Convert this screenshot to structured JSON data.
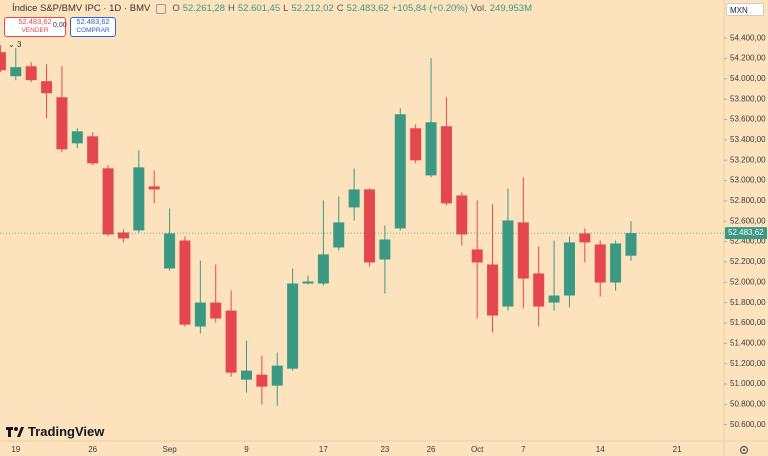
{
  "header": {
    "title": "Índice S&P/BMV IPC · 1D · BMV",
    "o_key": "O",
    "o": "52.261,28",
    "h_key": "H",
    "h": "52.601,45",
    "l_key": "L",
    "l": "52.212,02",
    "c_key": "C",
    "c": "52.483,62",
    "change": "+105,84 (+0.20%)",
    "vol_key": "Vol.",
    "vol": "249,953M"
  },
  "trade": {
    "sell_price": "52.483,62",
    "sell_label": "VENDER",
    "spread": "0,00",
    "buy_price": "52.483,62",
    "buy_label": "COMPRAR"
  },
  "indicators_count": "3",
  "currency": "MXN",
  "brand": "TradingView",
  "chart_data": {
    "type": "candlestick",
    "categories": [
      null,
      "19",
      null,
      null,
      null,
      null,
      "26",
      null,
      null,
      null,
      null,
      "Sep",
      null,
      null,
      null,
      null,
      "9",
      null,
      null,
      null,
      null,
      "17",
      null,
      null,
      null,
      "23",
      null,
      null,
      "26",
      null,
      null,
      "Oct",
      null,
      null,
      "7",
      null,
      null,
      null,
      null,
      "14",
      null,
      null,
      null,
      null,
      "21"
    ],
    "open": [
      54262,
      54026,
      54124,
      53977,
      53819,
      53366,
      53435,
      53120,
      52490,
      52510,
      52943,
      52136,
      52411,
      51565,
      51801,
      51722,
      51043,
      51092,
      50984,
      51151,
      51988,
      51988,
      52342,
      52736,
      52913,
      52224,
      52530,
      53514,
      53051,
      53534,
      52854,
      52323,
      52175,
      51762,
      52589,
      52087,
      51801,
      51870,
      52480,
      52372,
      51998,
      52261.28,
      null,
      null,
      null
    ],
    "high": [
      54331,
      54302,
      54164,
      54144,
      54124,
      53514,
      53475,
      53150,
      52520,
      53297,
      53100,
      52726,
      52451,
      52215,
      52175,
      51919,
      51427,
      51279,
      51309,
      52136,
      52067,
      52805,
      52844,
      53120,
      52923,
      52559,
      53711,
      53553,
      54203,
      53819,
      52884,
      52805,
      52766,
      52923,
      53032,
      52352,
      52411,
      52451,
      52530,
      52411,
      52411,
      52601.45,
      null,
      null,
      null
    ],
    "low": [
      54066,
      53987,
      53967,
      53612,
      53278,
      53317,
      53150,
      52451,
      52392,
      52490,
      52776,
      52116,
      51565,
      51496,
      51604,
      51073,
      50915,
      50797,
      50787,
      51132,
      51978,
      51968,
      52313,
      52608,
      52155,
      51889,
      52510,
      53169,
      53032,
      52756,
      52362,
      51644,
      51506,
      51722,
      51742,
      51565,
      51722,
      51752,
      52195,
      51860,
      51919,
      52212.02,
      null,
      null,
      null
    ],
    "close": [
      54085,
      54115,
      53987,
      53859,
      53307,
      53484,
      53169,
      52470,
      52431,
      53130,
      52913,
      52480,
      51584,
      51801,
      51644,
      51112,
      51132,
      50974,
      51181,
      51988,
      52008,
      52274,
      52589,
      52913,
      52195,
      52421,
      53652,
      53199,
      53573,
      52776,
      52470,
      52195,
      51673,
      52608,
      52037,
      51762,
      51870,
      52392,
      52392,
      51998,
      52382,
      52483.62,
      null,
      null,
      null
    ],
    "up_color": "#3b9883",
    "down_color": "#e5474f",
    "ylim": [
      50440,
      54775
    ],
    "yticks": [
      {
        "value": 50600,
        "label": "50.600,00"
      },
      {
        "value": 50800,
        "label": "50.800,00"
      },
      {
        "value": 51000,
        "label": "51.000,00"
      },
      {
        "value": 51200,
        "label": "51.200,00"
      },
      {
        "value": 51400,
        "label": "51.400,00"
      },
      {
        "value": 51600,
        "label": "51.600,00"
      },
      {
        "value": 51800,
        "label": "51.800,00"
      },
      {
        "value": 52000,
        "label": "52.000,00"
      },
      {
        "value": 52200,
        "label": "52.200,00"
      },
      {
        "value": 52400,
        "label": "52.400,00"
      },
      {
        "value": 52600,
        "label": "52.600,00"
      },
      {
        "value": 52800,
        "label": "52.800,00"
      },
      {
        "value": 53000,
        "label": "53.000,00"
      },
      {
        "value": 53200,
        "label": "53.200,00"
      },
      {
        "value": 53400,
        "label": "53.400,00"
      },
      {
        "value": 53600,
        "label": "53.600,00"
      },
      {
        "value": 53800,
        "label": "53.800,00"
      },
      {
        "value": 54000,
        "label": "54.000,00"
      },
      {
        "value": 54200,
        "label": "54.200,00"
      },
      {
        "value": 54400,
        "label": "54.400,00"
      }
    ],
    "last_price": {
      "value": 52483.62,
      "label": "52.483,62"
    }
  }
}
